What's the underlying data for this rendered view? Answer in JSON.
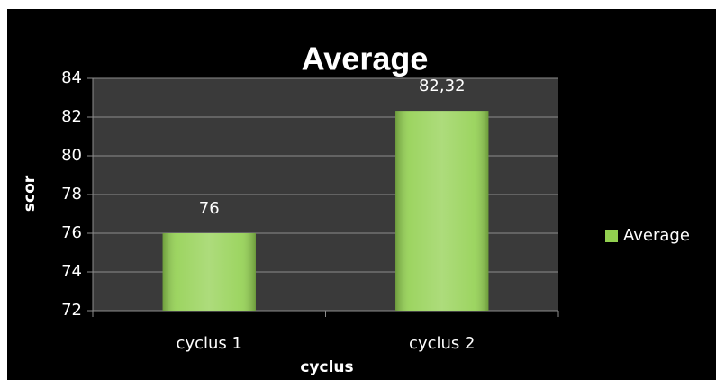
{
  "chart_data": {
    "type": "bar",
    "title": "Average",
    "categories": [
      "cyclus 1",
      "cyclus 2"
    ],
    "series": [
      {
        "name": "Average",
        "color": "#92d050",
        "values": [
          76,
          82.32
        ],
        "value_labels": [
          "76",
          "82,32"
        ]
      }
    ],
    "xlabel": "cyclus",
    "ylabel": "scor",
    "ylim": [
      72,
      84
    ],
    "yticks": [
      72,
      74,
      76,
      78,
      80,
      82,
      84
    ],
    "grid": true,
    "legend": "right"
  }
}
